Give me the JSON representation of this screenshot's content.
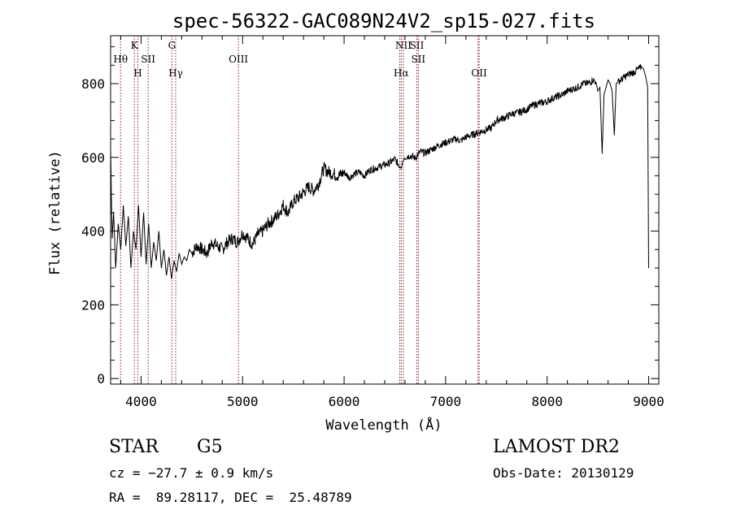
{
  "chart_data": {
    "type": "line",
    "title": "spec-56322-GAC089N24V2_sp15-027.fits",
    "xlabel": "Wavelength (Å)",
    "ylabel": "Flux (relative)",
    "xlim": [
      3700,
      9100
    ],
    "ylim": [
      -15,
      930
    ],
    "xticks": [
      4000,
      5000,
      6000,
      7000,
      8000,
      9000
    ],
    "yticks": [
      0,
      200,
      400,
      600,
      800
    ],
    "line_color": "#000000",
    "marker_color": "#8b1a1a",
    "grid": false,
    "series": [
      {
        "x": [
          3700,
          3715,
          3730,
          3750,
          3775,
          3800,
          3825,
          3850,
          3875,
          3900,
          3925,
          3950,
          3975,
          4000,
          4025,
          4050,
          4075,
          4100,
          4125,
          4150,
          4175,
          4200,
          4225,
          4250,
          4275,
          4300,
          4325,
          4350,
          4375,
          4400,
          4425,
          4450,
          4475,
          4500,
          4550,
          4600,
          4650,
          4700,
          4750,
          4800,
          4850,
          4900,
          4950,
          5000,
          5050,
          5100,
          5150,
          5200,
          5250,
          5300,
          5350,
          5400,
          5450,
          5500,
          5550,
          5600,
          5650,
          5700,
          5750,
          5800,
          5850,
          5900,
          5950,
          6000,
          6050,
          6100,
          6150,
          6200,
          6250,
          6300,
          6350,
          6400,
          6450,
          6500,
          6550,
          6563,
          6580,
          6600,
          6650,
          6700,
          6750,
          6800,
          6850,
          6900,
          6950,
          7000,
          7050,
          7100,
          7150,
          7200,
          7250,
          7300,
          7350,
          7400,
          7450,
          7500,
          7550,
          7600,
          7650,
          7700,
          7750,
          7800,
          7850,
          7900,
          7950,
          8000,
          8050,
          8100,
          8150,
          8200,
          8250,
          8300,
          8350,
          8400,
          8450,
          8480,
          8500,
          8520,
          8542,
          8560,
          8580,
          8600,
          8620,
          8640,
          8662,
          8680,
          8700,
          8750,
          8800,
          8850,
          8900,
          8930,
          8950,
          8970,
          8990,
          9000
        ],
        "y": [
          620,
          380,
          450,
          300,
          420,
          350,
          470,
          360,
          440,
          300,
          400,
          350,
          470,
          330,
          450,
          310,
          420,
          300,
          370,
          320,
          400,
          300,
          350,
          280,
          330,
          270,
          320,
          290,
          340,
          310,
          330,
          320,
          350,
          340,
          360,
          350,
          340,
          370,
          360,
          350,
          370,
          380,
          370,
          395,
          380,
          365,
          390,
          400,
          420,
          430,
          445,
          470,
          450,
          480,
          490,
          505,
          520,
          510,
          530,
          570,
          560,
          555,
          550,
          560,
          545,
          555,
          560,
          550,
          565,
          570,
          575,
          580,
          585,
          595,
          575,
          570,
          590,
          600,
          605,
          598,
          615,
          612,
          620,
          628,
          635,
          640,
          645,
          650,
          645,
          655,
          660,
          665,
          670,
          675,
          680,
          700,
          705,
          710,
          718,
          720,
          725,
          730,
          740,
          745,
          748,
          752,
          760,
          765,
          770,
          780,
          785,
          790,
          800,
          800,
          810,
          805,
          780,
          790,
          610,
          770,
          790,
          810,
          800,
          780,
          660,
          800,
          805,
          815,
          825,
          830,
          840,
          845,
          840,
          820,
          790,
          300
        ]
      }
    ],
    "lines": [
      {
        "wavelength": 3798,
        "labels": [
          "Hθ"
        ]
      },
      {
        "wavelength": 3934,
        "labels": [
          "K"
        ]
      },
      {
        "wavelength": 3968,
        "labels": [
          "H"
        ]
      },
      {
        "wavelength": 4070,
        "labels": [
          "SII"
        ]
      },
      {
        "wavelength": 4304,
        "labels": [
          "G"
        ]
      },
      {
        "wavelength": 4341,
        "labels": [
          "Hγ"
        ]
      },
      {
        "wavelength": 4959,
        "labels": [
          "OIII"
        ]
      },
      {
        "wavelength": 6548,
        "labels": []
      },
      {
        "wavelength": 6563,
        "labels": [
          "Hα"
        ]
      },
      {
        "wavelength": 6584,
        "labels": [
          "NII"
        ]
      },
      {
        "wavelength": 6717,
        "labels": [
          "SII"
        ]
      },
      {
        "wavelength": 6731,
        "labels": [
          "SII"
        ]
      },
      {
        "wavelength": 7320,
        "labels": []
      },
      {
        "wavelength": 7330,
        "labels": [
          "OII"
        ]
      }
    ]
  },
  "info": {
    "object_class": "STAR",
    "subclass": "G5",
    "survey": "LAMOST DR2",
    "redshift": "cz = −27.7 ± 0.9 km/s",
    "obs_date": "Obs-Date: 20130129",
    "coords": "RA =  89.28117, DEC =  25.48789"
  }
}
